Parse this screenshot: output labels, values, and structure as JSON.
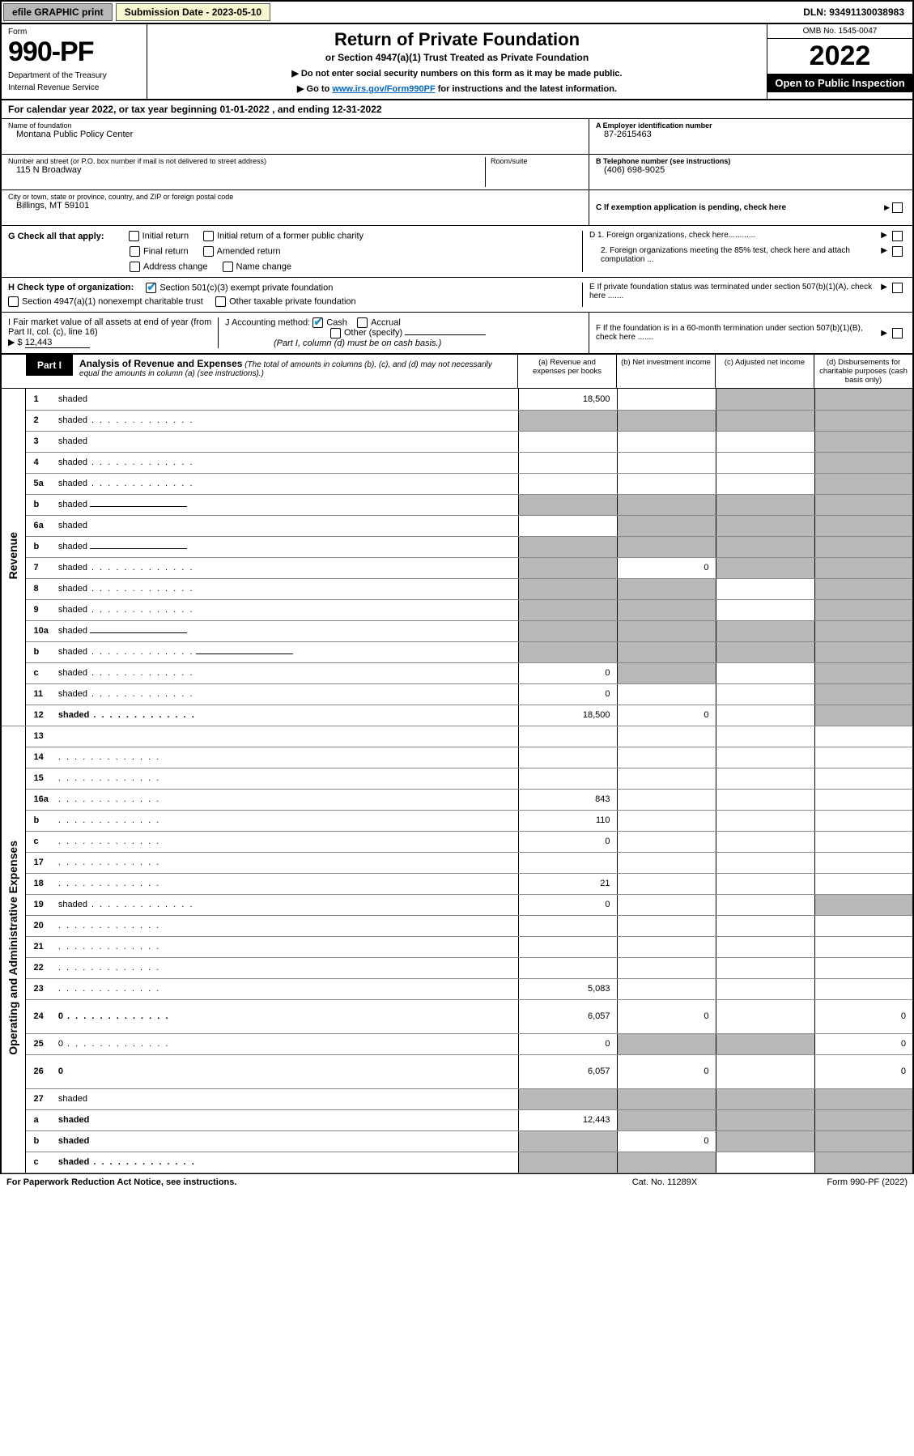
{
  "topbar": {
    "efile": "efile GRAPHIC print",
    "submission": "Submission Date - 2023-05-10",
    "dln": "DLN: 93491130038983"
  },
  "header": {
    "form_label": "Form",
    "form_number": "990-PF",
    "dept": "Department of the Treasury",
    "irs": "Internal Revenue Service",
    "title": "Return of Private Foundation",
    "subtitle": "or Section 4947(a)(1) Trust Treated as Private Foundation",
    "note1": "▶ Do not enter social security numbers on this form as it may be made public.",
    "note2_pre": "▶ Go to ",
    "note2_link": "www.irs.gov/Form990PF",
    "note2_post": " for instructions and the latest information.",
    "omb": "OMB No. 1545-0047",
    "year": "2022",
    "open": "Open to Public Inspection"
  },
  "cal_year": "For calendar year 2022, or tax year beginning 01-01-2022                   , and ending 12-31-2022",
  "info": {
    "name_lbl": "Name of foundation",
    "name": "Montana Public Policy Center",
    "addr_lbl": "Number and street (or P.O. box number if mail is not delivered to street address)",
    "addr": "115 N Broadway",
    "room_lbl": "Room/suite",
    "city_lbl": "City or town, state or province, country, and ZIP or foreign postal code",
    "city": "Billings, MT  59101",
    "a_lbl": "A Employer identification number",
    "a_val": "87-2615463",
    "b_lbl": "B Telephone number (see instructions)",
    "b_val": "(406) 698-9025",
    "c_lbl": "C If exemption application is pending, check here"
  },
  "g": {
    "label": "G Check all that apply:",
    "initial": "Initial return",
    "initial_former": "Initial return of a former public charity",
    "final": "Final return",
    "amended": "Amended return",
    "address": "Address change",
    "name_change": "Name change"
  },
  "h": {
    "label": "H Check type of organization:",
    "opt1": "Section 501(c)(3) exempt private foundation",
    "opt2": "Section 4947(a)(1) nonexempt charitable trust",
    "opt3": "Other taxable private foundation"
  },
  "i": {
    "label": "I Fair market value of all assets at end of year (from Part II, col. (c), line 16)",
    "arrow": "▶ $",
    "val": "12,443"
  },
  "j": {
    "label": "J Accounting method:",
    "cash": "Cash",
    "accrual": "Accrual",
    "other": "Other (specify)",
    "note": "(Part I, column (d) must be on cash basis.)"
  },
  "right": {
    "d1": "D 1. Foreign organizations, check here............",
    "d2": "2. Foreign organizations meeting the 85% test, check here and attach computation ...",
    "e": "E  If private foundation status was terminated under section 507(b)(1)(A), check here .......",
    "f": "F  If the foundation is in a 60-month termination under section 507(b)(1)(B), check here .......",
    "arrow": "▶"
  },
  "part1": {
    "tag": "Part I",
    "title": "Analysis of Revenue and Expenses",
    "note": "(The total of amounts in columns (b), (c), and (d) may not necessarily equal the amounts in column (a) (see instructions).)",
    "col_a": "(a)  Revenue and expenses per books",
    "col_b": "(b)  Net investment income",
    "col_c": "(c)  Adjusted net income",
    "col_d": "(d)  Disbursements for charitable purposes (cash basis only)"
  },
  "rows": [
    {
      "section": "Revenue",
      "n": "1",
      "d": "shaded",
      "a": "18,500",
      "b": "",
      "c": "shaded"
    },
    {
      "n": "2",
      "d": "shaded",
      "dots": true,
      "a": "shaded",
      "b": "shaded",
      "c": "shaded",
      "noborder": true
    },
    {
      "n": "3",
      "d": "shaded",
      "a": "",
      "b": "",
      "c": ""
    },
    {
      "n": "4",
      "d": "shaded",
      "dots": true,
      "a": "",
      "b": "",
      "c": ""
    },
    {
      "n": "5a",
      "d": "shaded",
      "dots": true,
      "a": "",
      "b": "",
      "c": ""
    },
    {
      "n": "b",
      "d": "shaded",
      "inline": true,
      "a": "shaded",
      "b": "shaded",
      "c": "shaded"
    },
    {
      "n": "6a",
      "d": "shaded",
      "a": "",
      "b": "shaded",
      "c": "shaded"
    },
    {
      "n": "b",
      "d": "shaded",
      "inline": true,
      "a": "shaded",
      "b": "shaded",
      "c": "shaded"
    },
    {
      "n": "7",
      "d": "shaded",
      "dots": true,
      "a": "shaded",
      "b": "0",
      "c": "shaded"
    },
    {
      "n": "8",
      "d": "shaded",
      "dots": true,
      "a": "shaded",
      "b": "shaded",
      "c": ""
    },
    {
      "n": "9",
      "d": "shaded",
      "dots": true,
      "a": "shaded",
      "b": "shaded",
      "c": ""
    },
    {
      "n": "10a",
      "d": "shaded",
      "inline": true,
      "a": "shaded",
      "b": "shaded",
      "c": "shaded"
    },
    {
      "n": "b",
      "d": "shaded",
      "dots": true,
      "inline": true,
      "a": "shaded",
      "b": "shaded",
      "c": "shaded"
    },
    {
      "n": "c",
      "d": "shaded",
      "dots": true,
      "a": "0",
      "b": "shaded",
      "c": ""
    },
    {
      "n": "11",
      "d": "shaded",
      "dots": true,
      "a": "0",
      "b": "",
      "c": ""
    },
    {
      "n": "12",
      "d": "shaded",
      "dots": true,
      "a": "18,500",
      "b": "0",
      "c": "",
      "bold": true
    },
    {
      "section": "Operating and Administrative Expenses",
      "n": "13",
      "d": "",
      "a": "",
      "b": "",
      "c": ""
    },
    {
      "n": "14",
      "d": "",
      "dots": true,
      "a": "",
      "b": "",
      "c": ""
    },
    {
      "n": "15",
      "d": "",
      "dots": true,
      "a": "",
      "b": "",
      "c": ""
    },
    {
      "n": "16a",
      "d": "",
      "dots": true,
      "a": "843",
      "b": "",
      "c": ""
    },
    {
      "n": "b",
      "d": "",
      "dots": true,
      "a": "110",
      "b": "",
      "c": ""
    },
    {
      "n": "c",
      "d": "",
      "dots": true,
      "a": "0",
      "b": "",
      "c": ""
    },
    {
      "n": "17",
      "d": "",
      "dots": true,
      "a": "",
      "b": "",
      "c": ""
    },
    {
      "n": "18",
      "d": "",
      "dots": true,
      "a": "21",
      "b": "",
      "c": ""
    },
    {
      "n": "19",
      "d": "shaded",
      "dots": true,
      "a": "0",
      "b": "",
      "c": ""
    },
    {
      "n": "20",
      "d": "",
      "dots": true,
      "a": "",
      "b": "",
      "c": ""
    },
    {
      "n": "21",
      "d": "",
      "dots": true,
      "a": "",
      "b": "",
      "c": ""
    },
    {
      "n": "22",
      "d": "",
      "dots": true,
      "a": "",
      "b": "",
      "c": ""
    },
    {
      "n": "23",
      "d": "",
      "dots": true,
      "a": "5,083",
      "b": "",
      "c": ""
    },
    {
      "n": "24",
      "d": "0",
      "dots": true,
      "a": "6,057",
      "b": "0",
      "c": "",
      "bold": true,
      "tall": true
    },
    {
      "n": "25",
      "d": "0",
      "dots": true,
      "a": "0",
      "b": "shaded",
      "c": "shaded"
    },
    {
      "n": "26",
      "d": "0",
      "a": "6,057",
      "b": "0",
      "c": "",
      "bold": true,
      "tall": true
    },
    {
      "n": "27",
      "d": "shaded",
      "a": "shaded",
      "b": "shaded",
      "c": "shaded"
    },
    {
      "n": "a",
      "d": "shaded",
      "a": "12,443",
      "b": "shaded",
      "c": "shaded",
      "bold": true
    },
    {
      "n": "b",
      "d": "shaded",
      "a": "shaded",
      "b": "0",
      "c": "shaded",
      "bold": true
    },
    {
      "n": "c",
      "d": "shaded",
      "dots": true,
      "a": "shaded",
      "b": "shaded",
      "c": "",
      "bold": true
    }
  ],
  "footer": {
    "l": "For Paperwork Reduction Act Notice, see instructions.",
    "c": "Cat. No. 11289X",
    "r": "Form 990-PF (2022)"
  },
  "colors": {
    "btn_bg": "#b8b8b8",
    "shaded": "#b8b8b8",
    "link": "#0066cc",
    "check": "#1890c9"
  }
}
